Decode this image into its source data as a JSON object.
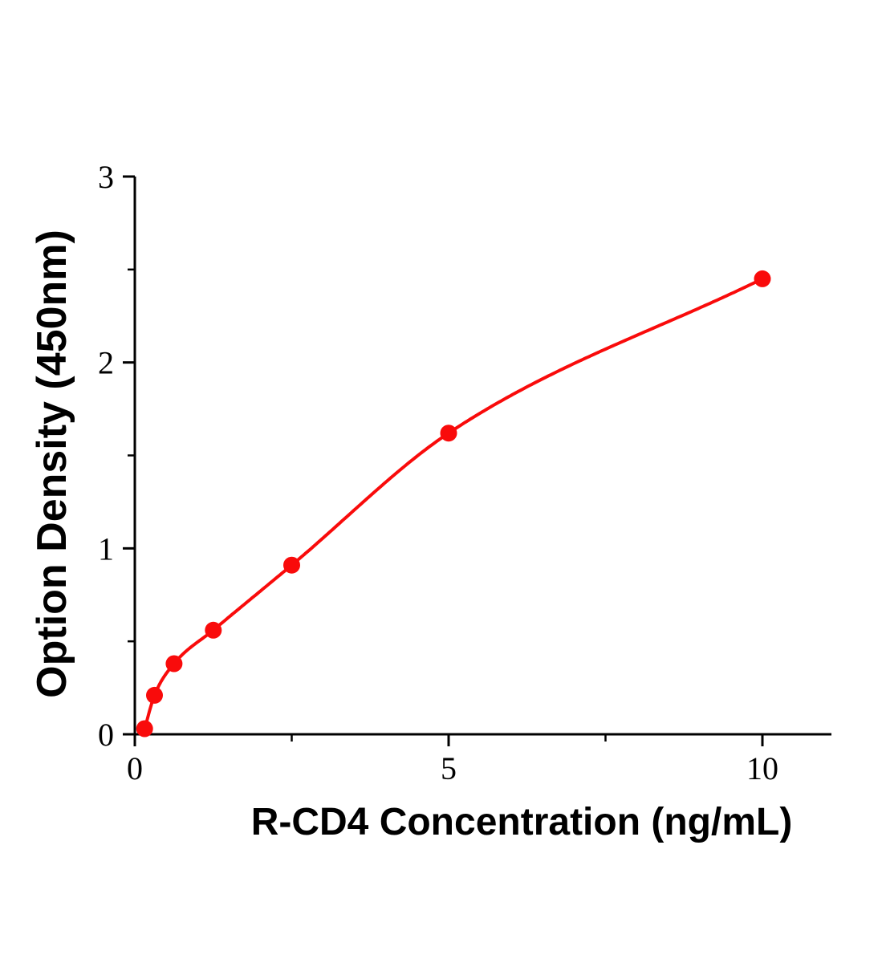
{
  "page": {
    "background": "#ffffff"
  },
  "chart_data": {
    "type": "scatter",
    "title": "",
    "xlabel": "R-CD4 Concentration (ng/mL)",
    "ylabel": "Option Density (450nm)",
    "x": [
      0.156,
      0.313,
      0.625,
      1.25,
      2.5,
      5,
      10
    ],
    "y": [
      0.03,
      0.21,
      0.38,
      0.56,
      0.91,
      1.62,
      2.45
    ],
    "curve": "monotone-fit-through-points",
    "xlim": [
      0,
      11.1
    ],
    "ylim": [
      0,
      3
    ],
    "xticks": [
      0,
      5,
      10
    ],
    "yticks": [
      0,
      1,
      2,
      3
    ],
    "xminor": [
      2.5,
      7.5
    ],
    "yminor": [
      0.5,
      1.5,
      2.5
    ],
    "grid": false,
    "legend": "none",
    "point_color": "#f90b0b",
    "line_color": "#f90b0b",
    "axis_color": "#000000"
  }
}
